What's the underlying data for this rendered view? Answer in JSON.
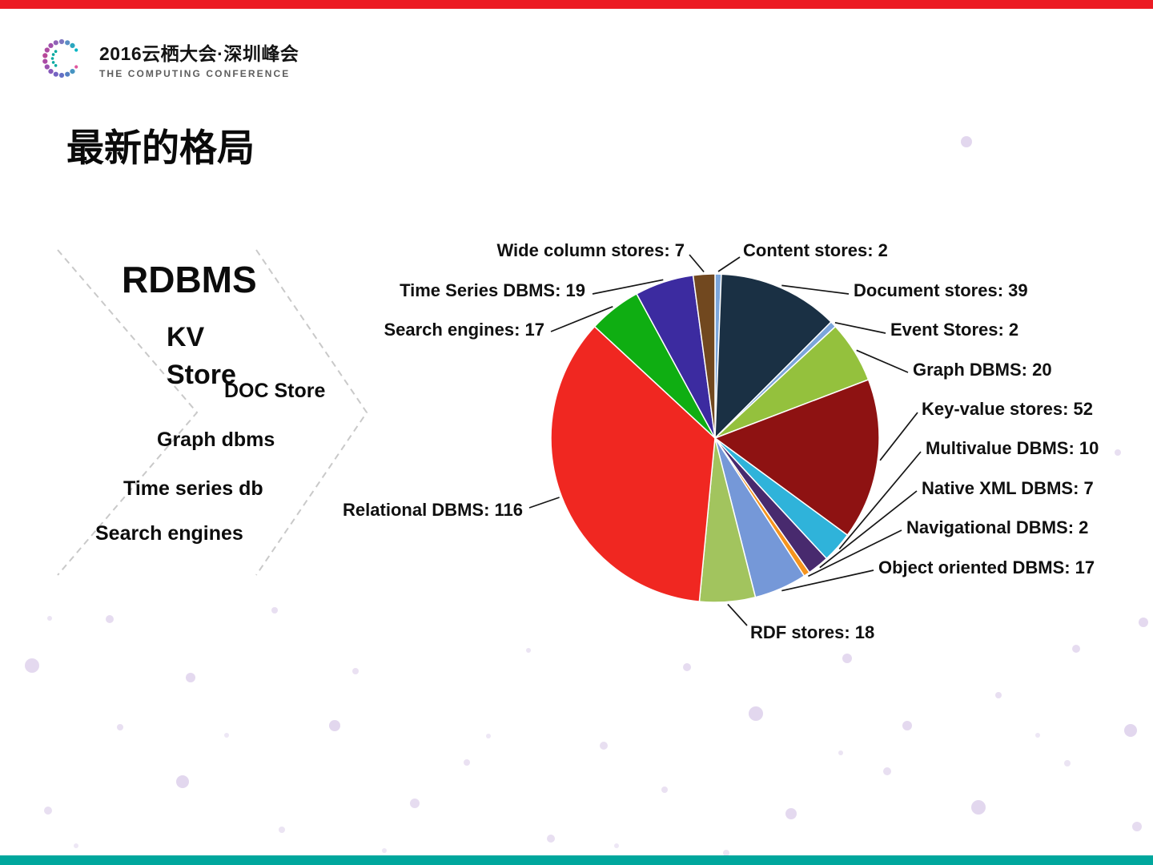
{
  "logo": {
    "title": "2016云栖大会·深圳峰会",
    "subtitle": "THE COMPUTING CONFERENCE"
  },
  "title": "最新的格局",
  "categories": [
    {
      "label": "RDBMS"
    },
    {
      "label": "KV Store"
    },
    {
      "label": "DOC Store"
    },
    {
      "label": "Graph dbms"
    },
    {
      "label": "Time series db"
    },
    {
      "label": "Search engines"
    }
  ],
  "accents": {
    "top_bar": "#ec1b23",
    "bottom_bar": "#00a79d",
    "dot_color": "#d8c9e8"
  },
  "chart_data": {
    "type": "pie",
    "start_angle_deg": 0,
    "direction": "clockwise",
    "slices": [
      {
        "name": "Content stores",
        "value": 2,
        "label": "Content stores: 2",
        "color": "#7ca6db"
      },
      {
        "name": "Document stores",
        "value": 39,
        "label": "Document stores: 39",
        "color": "#1a3044"
      },
      {
        "name": "Event Stores",
        "value": 2,
        "label": "Event Stores: 2",
        "color": "#7ca6db"
      },
      {
        "name": "Graph DBMS",
        "value": 20,
        "label": "Graph DBMS: 20",
        "color": "#94c13d"
      },
      {
        "name": "Key-value stores",
        "value": 52,
        "label": "Key-value stores: 52",
        "color": "#8e1212"
      },
      {
        "name": "Multivalue DBMS",
        "value": 10,
        "label": "Multivalue DBMS: 10",
        "color": "#2fb3da"
      },
      {
        "name": "Native XML DBMS",
        "value": 7,
        "label": "Native XML DBMS: 7",
        "color": "#482a6e"
      },
      {
        "name": "Navigational DBMS",
        "value": 2,
        "label": "Navigational DBMS: 2",
        "color": "#f5941e"
      },
      {
        "name": "Object oriented DBMS",
        "value": 17,
        "label": "Object oriented DBMS: 17",
        "color": "#7598d8"
      },
      {
        "name": "RDF stores",
        "value": 18,
        "label": "RDF stores: 18",
        "color": "#a2c45e"
      },
      {
        "name": "Relational DBMS",
        "value": 116,
        "label": "Relational DBMS: 116",
        "color": "#f02721"
      },
      {
        "name": "Search engines",
        "value": 17,
        "label": "Search engines: 17",
        "color": "#0fae12"
      },
      {
        "name": "Time Series DBMS",
        "value": 19,
        "label": "Time Series DBMS: 19",
        "color": "#3c2ba0"
      },
      {
        "name": "Wide column stores",
        "value": 7,
        "label": "Wide column stores: 7",
        "color": "#71481f"
      }
    ]
  }
}
